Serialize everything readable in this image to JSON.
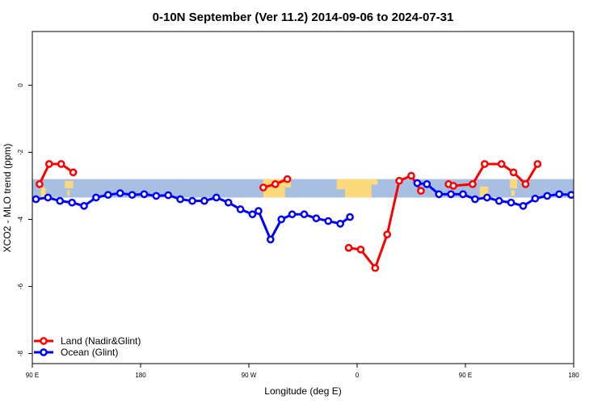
{
  "chart_data": {
    "type": "line",
    "title": "0-10N September (Ver 11.2)   2014-09-06 to 2024-07-31",
    "xlabel": "Longitude (deg E)",
    "ylabel": "XCO2 - MLO trend (ppm)",
    "xlim": [
      90,
      450
    ],
    "ylim": [
      -8.3,
      1.6
    ],
    "x_ticks": [
      {
        "value": 90,
        "label": "90 E"
      },
      {
        "value": 180,
        "label": "180"
      },
      {
        "value": 270,
        "label": "90 W"
      },
      {
        "value": 360,
        "label": "0"
      },
      {
        "value": 450,
        "label": "90 E"
      },
      {
        "value": 540,
        "label": "180"
      }
    ],
    "y_ticks": [
      {
        "value": 0,
        "label": "0"
      },
      {
        "value": -2,
        "label": "-2"
      },
      {
        "value": -4,
        "label": "-4"
      },
      {
        "value": -6,
        "label": "-6"
      },
      {
        "value": -8,
        "label": "-8"
      }
    ],
    "map_band": {
      "ymin": -3.35,
      "ymax": -2.8,
      "ocean_color": "#a7bfe0",
      "land_color": "#fcd97a"
    },
    "grid": false,
    "legend_position": "bottom-left",
    "series": [
      {
        "name": "Land (Nadir&Glint)",
        "color": "#ff0000",
        "segments": [
          {
            "x": [
              96,
              104,
              114,
              124
            ],
            "y": [
              -2.95,
              -2.35,
              -2.35,
              -2.6
            ]
          },
          {
            "x": [
              282,
              292,
              302
            ],
            "y": [
              -3.05,
              -2.95,
              -2.8
            ]
          },
          {
            "x": [
              353,
              363,
              375,
              385,
              395,
              405,
              413
            ],
            "y": [
              -4.85,
              -4.9,
              -5.45,
              -4.45,
              -2.85,
              -2.7,
              -3.15
            ]
          },
          {
            "x": [
              436,
              440,
              456,
              466,
              480,
              490,
              500,
              510
            ],
            "y": [
              -2.95,
              -3.0,
              -2.95,
              -2.35,
              -2.35,
              -2.6,
              -2.95,
              -2.35
            ]
          }
        ]
      },
      {
        "name": "Ocean (Glint)",
        "color": "#0000ff",
        "points": {
          "x": [
            93,
            103,
            113,
            123,
            133,
            143,
            153,
            163,
            173,
            183,
            193,
            203,
            213,
            223,
            233,
            243,
            253,
            263,
            273,
            283,
            288,
            297,
            306,
            316,
            325,
            335,
            345,
            355,
            365
          ],
          "y": [
            -3.4,
            -3.35,
            -3.45,
            -3.5,
            -3.6,
            -3.35,
            -3.25,
            -3.22,
            -3.27,
            -3.25,
            -3.3,
            -3.28,
            -3.4,
            -3.45,
            -3.45,
            -3.35,
            -3.5,
            -3.7,
            -3.85,
            -3.75,
            -4.6,
            -4.0,
            -3.85,
            -3.85,
            -3.97,
            -4.05,
            -4.1,
            -3.93,
            -4.1
          ]
        },
        "segments": [
          {
            "x": [
              93,
              103,
              113,
              123,
              133,
              143,
              153,
              163,
              173,
              183,
              193,
              203,
              213,
              223,
              233,
              243,
              253,
              263,
              273,
              278,
              288,
              297,
              306,
              316,
              326,
              336,
              346,
              354
            ],
            "y": [
              -3.4,
              -3.35,
              -3.45,
              -3.5,
              -3.6,
              -3.35,
              -3.27,
              -3.22,
              -3.27,
              -3.25,
              -3.3,
              -3.28,
              -3.4,
              -3.45,
              -3.45,
              -3.35,
              -3.5,
              -3.7,
              -3.85,
              -3.75,
              -4.6,
              -4.0,
              -3.85,
              -3.85,
              -3.97,
              -4.05,
              -4.13,
              -3.93
            ]
          },
          {
            "x": [
              410,
              418,
              428,
              438,
              448,
              458,
              468,
              478,
              488,
              498,
              508,
              518,
              528,
              538,
              548
            ],
            "y": [
              -2.92,
              -2.95,
              -3.25,
              -3.25,
              -3.25,
              -3.4,
              -3.35,
              -3.45,
              -3.5,
              -3.6,
              -3.38,
              -3.3,
              -3.25,
              -3.27,
              -3.3
            ]
          }
        ]
      }
    ]
  }
}
